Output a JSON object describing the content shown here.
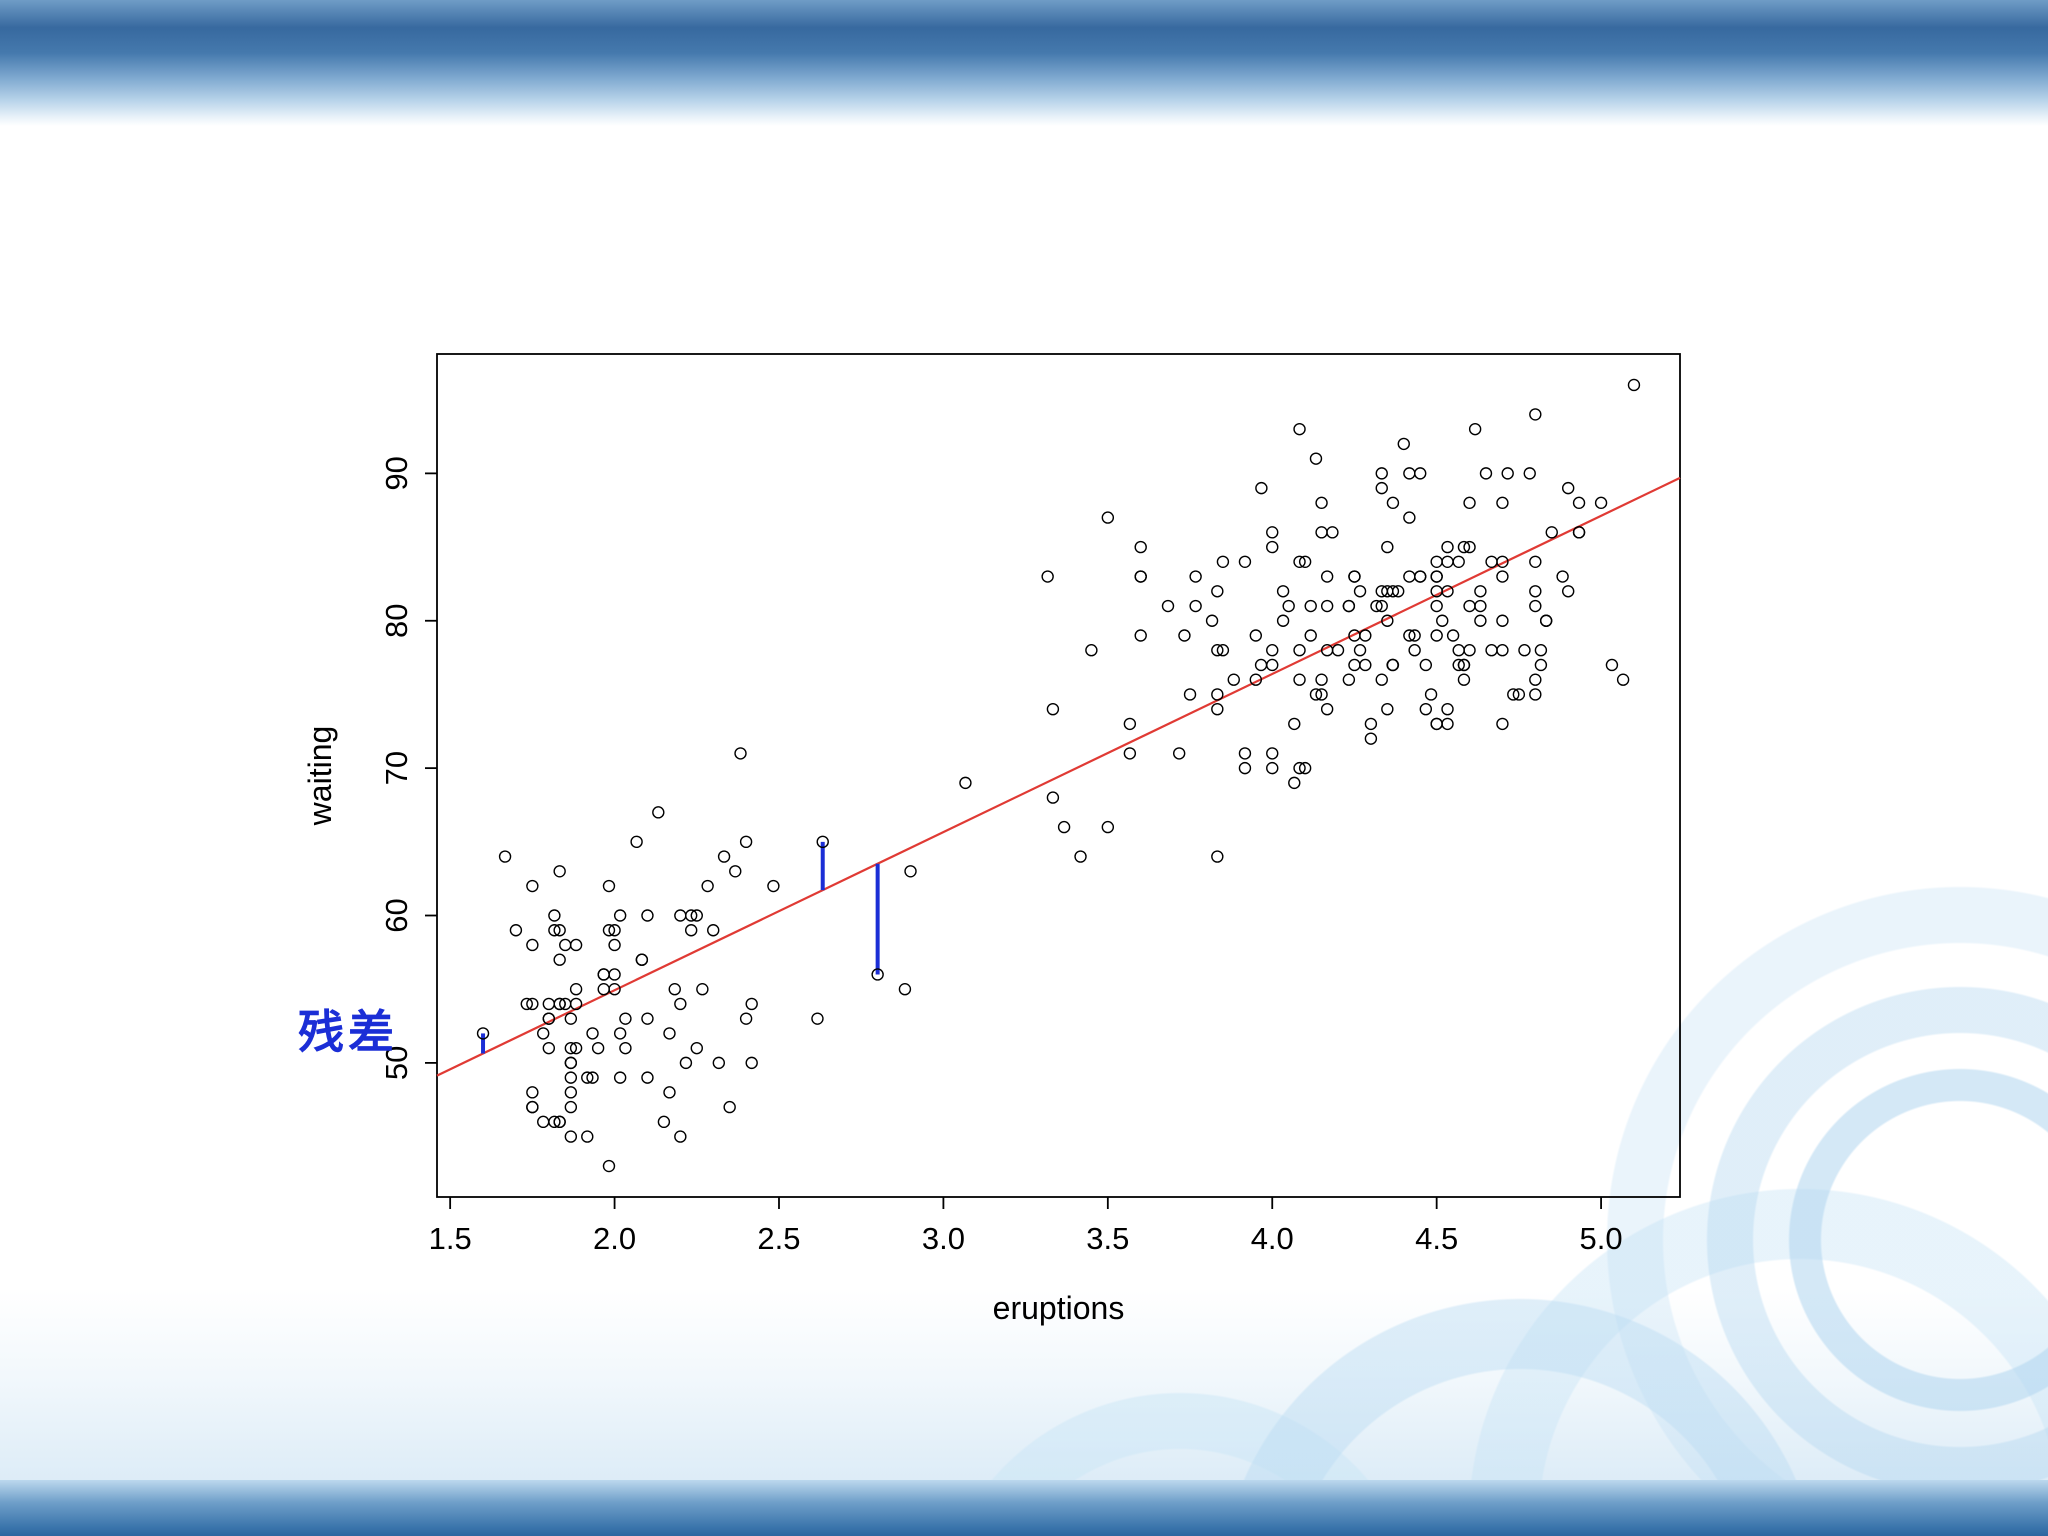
{
  "annotations": {
    "residual_label": {
      "text": "残差",
      "color": "#1b2ed6"
    }
  },
  "chart_data": {
    "type": "scatter",
    "title": "",
    "xlabel": "eruptions",
    "ylabel": "waiting",
    "xlim": [
      1.46,
      5.24
    ],
    "ylim": [
      40.9,
      98.1
    ],
    "xticks": [
      1.5,
      2.0,
      2.5,
      3.0,
      3.5,
      4.0,
      4.5,
      5.0
    ],
    "yticks": [
      50,
      60,
      70,
      80,
      90
    ],
    "grid": false,
    "legend_position": "none",
    "point_style": {
      "shape": "open-circle",
      "color": "#000000"
    },
    "regression_line": {
      "slope": 10.73,
      "intercept": 33.47,
      "color": "#e03a34"
    },
    "residuals": {
      "color": "#1b2ed6",
      "points": [
        {
          "x": 1.6,
          "y": 52
        },
        {
          "x": 2.633,
          "y": 65
        },
        {
          "x": 2.8,
          "y": 56
        }
      ]
    },
    "points": [
      [
        3.6,
        79
      ],
      [
        1.8,
        54
      ],
      [
        3.333,
        74
      ],
      [
        2.283,
        62
      ],
      [
        4.533,
        85
      ],
      [
        2.883,
        55
      ],
      [
        4.7,
        88
      ],
      [
        3.6,
        85
      ],
      [
        1.95,
        51
      ],
      [
        4.35,
        85
      ],
      [
        1.833,
        54
      ],
      [
        3.917,
        84
      ],
      [
        4.2,
        78
      ],
      [
        1.75,
        47
      ],
      [
        4.7,
        83
      ],
      [
        2.167,
        52
      ],
      [
        1.75,
        62
      ],
      [
        4.8,
        84
      ],
      [
        1.6,
        52
      ],
      [
        4.25,
        79
      ],
      [
        1.8,
        51
      ],
      [
        1.75,
        47
      ],
      [
        3.45,
        78
      ],
      [
        3.067,
        69
      ],
      [
        4.533,
        74
      ],
      [
        3.6,
        83
      ],
      [
        1.967,
        55
      ],
      [
        4.083,
        76
      ],
      [
        3.85,
        78
      ],
      [
        4.433,
        79
      ],
      [
        4.3,
        73
      ],
      [
        4.467,
        77
      ],
      [
        3.367,
        66
      ],
      [
        4.033,
        80
      ],
      [
        3.833,
        74
      ],
      [
        2.017,
        52
      ],
      [
        1.867,
        48
      ],
      [
        4.833,
        80
      ],
      [
        1.833,
        59
      ],
      [
        4.783,
        90
      ],
      [
        4.35,
        80
      ],
      [
        1.883,
        58
      ],
      [
        4.567,
        84
      ],
      [
        1.75,
        58
      ],
      [
        4.533,
        73
      ],
      [
        3.317,
        83
      ],
      [
        3.833,
        64
      ],
      [
        2.1,
        53
      ],
      [
        4.633,
        82
      ],
      [
        2.0,
        59
      ],
      [
        4.8,
        75
      ],
      [
        4.716,
        90
      ],
      [
        1.833,
        54
      ],
      [
        4.833,
        80
      ],
      [
        1.733,
        54
      ],
      [
        4.883,
        83
      ],
      [
        3.717,
        71
      ],
      [
        1.667,
        64
      ],
      [
        4.567,
        77
      ],
      [
        4.317,
        81
      ],
      [
        2.233,
        59
      ],
      [
        4.5,
        84
      ],
      [
        1.75,
        48
      ],
      [
        4.8,
        82
      ],
      [
        1.817,
        60
      ],
      [
        4.4,
        92
      ],
      [
        4.167,
        78
      ],
      [
        4.7,
        78
      ],
      [
        2.067,
        65
      ],
      [
        4.7,
        73
      ],
      [
        4.033,
        82
      ],
      [
        1.967,
        56
      ],
      [
        4.5,
        79
      ],
      [
        4.0,
        71
      ],
      [
        1.983,
        62
      ],
      [
        5.067,
        76
      ],
      [
        2.017,
        60
      ],
      [
        4.567,
        78
      ],
      [
        3.883,
        76
      ],
      [
        3.6,
        83
      ],
      [
        4.133,
        75
      ],
      [
        4.333,
        82
      ],
      [
        4.1,
        70
      ],
      [
        2.633,
        65
      ],
      [
        4.067,
        73
      ],
      [
        4.933,
        88
      ],
      [
        3.95,
        76
      ],
      [
        4.517,
        80
      ],
      [
        2.167,
        48
      ],
      [
        4.0,
        86
      ],
      [
        2.2,
        60
      ],
      [
        4.333,
        90
      ],
      [
        1.867,
        50
      ],
      [
        4.817,
        78
      ],
      [
        1.833,
        63
      ],
      [
        4.3,
        72
      ],
      [
        4.667,
        84
      ],
      [
        3.75,
        75
      ],
      [
        1.867,
        51
      ],
      [
        4.9,
        82
      ],
      [
        2.483,
        62
      ],
      [
        4.367,
        88
      ],
      [
        2.1,
        49
      ],
      [
        4.5,
        83
      ],
      [
        4.05,
        81
      ],
      [
        1.867,
        47
      ],
      [
        4.7,
        84
      ],
      [
        1.783,
        52
      ],
      [
        4.85,
        86
      ],
      [
        3.683,
        81
      ],
      [
        4.733,
        75
      ],
      [
        2.3,
        59
      ],
      [
        4.9,
        89
      ],
      [
        4.417,
        79
      ],
      [
        1.7,
        59
      ],
      [
        4.633,
        81
      ],
      [
        2.317,
        50
      ],
      [
        4.6,
        85
      ],
      [
        1.817,
        59
      ],
      [
        4.417,
        87
      ],
      [
        2.617,
        53
      ],
      [
        4.067,
        69
      ],
      [
        4.25,
        77
      ],
      [
        1.967,
        56
      ],
      [
        4.6,
        88
      ],
      [
        3.767,
        81
      ],
      [
        1.917,
        45
      ],
      [
        4.5,
        82
      ],
      [
        2.267,
        55
      ],
      [
        4.65,
        90
      ],
      [
        1.867,
        45
      ],
      [
        4.167,
        83
      ],
      [
        2.8,
        56
      ],
      [
        4.333,
        89
      ],
      [
        1.833,
        46
      ],
      [
        4.383,
        82
      ],
      [
        1.883,
        51
      ],
      [
        4.933,
        86
      ],
      [
        2.033,
        53
      ],
      [
        3.733,
        79
      ],
      [
        4.233,
        81
      ],
      [
        2.233,
        60
      ],
      [
        4.533,
        82
      ],
      [
        4.817,
        77
      ],
      [
        4.333,
        76
      ],
      [
        1.983,
        59
      ],
      [
        4.633,
        80
      ],
      [
        2.017,
        49
      ],
      [
        5.1,
        96
      ],
      [
        1.8,
        53
      ],
      [
        5.033,
        77
      ],
      [
        4.0,
        77
      ],
      [
        2.4,
        65
      ],
      [
        4.6,
        81
      ],
      [
        3.567,
        71
      ],
      [
        4.0,
        70
      ],
      [
        4.5,
        81
      ],
      [
        4.083,
        93
      ],
      [
        1.8,
        53
      ],
      [
        3.967,
        89
      ],
      [
        2.2,
        45
      ],
      [
        4.15,
        86
      ],
      [
        2.0,
        58
      ],
      [
        3.833,
        78
      ],
      [
        3.5,
        66
      ],
      [
        4.583,
        76
      ],
      [
        2.367,
        63
      ],
      [
        5.0,
        88
      ],
      [
        1.933,
        52
      ],
      [
        4.617,
        93
      ],
      [
        1.917,
        49
      ],
      [
        2.083,
        57
      ],
      [
        4.583,
        77
      ],
      [
        3.333,
        68
      ],
      [
        4.167,
        81
      ],
      [
        4.333,
        81
      ],
      [
        4.5,
        73
      ],
      [
        2.417,
        50
      ],
      [
        4.0,
        85
      ],
      [
        4.167,
        74
      ],
      [
        1.883,
        55
      ],
      [
        4.583,
        77
      ],
      [
        4.25,
        83
      ],
      [
        3.767,
        83
      ],
      [
        2.033,
        51
      ],
      [
        4.433,
        78
      ],
      [
        4.083,
        84
      ],
      [
        1.833,
        46
      ],
      [
        4.417,
        83
      ],
      [
        2.183,
        55
      ],
      [
        4.8,
        81
      ],
      [
        1.833,
        57
      ],
      [
        4.8,
        76
      ],
      [
        4.1,
        84
      ],
      [
        3.966,
        77
      ],
      [
        4.233,
        81
      ],
      [
        3.5,
        87
      ],
      [
        4.366,
        77
      ],
      [
        2.25,
        51
      ],
      [
        4.667,
        78
      ],
      [
        2.1,
        60
      ],
      [
        4.35,
        82
      ],
      [
        4.133,
        91
      ],
      [
        1.867,
        53
      ],
      [
        4.6,
        78
      ],
      [
        1.783,
        46
      ],
      [
        4.367,
        77
      ],
      [
        3.85,
        84
      ],
      [
        1.933,
        49
      ],
      [
        4.5,
        83
      ],
      [
        2.383,
        71
      ],
      [
        4.7,
        80
      ],
      [
        1.867,
        49
      ],
      [
        3.833,
        75
      ],
      [
        3.417,
        64
      ],
      [
        4.233,
        76
      ],
      [
        2.4,
        53
      ],
      [
        4.8,
        94
      ],
      [
        2.0,
        55
      ],
      [
        4.15,
        76
      ],
      [
        1.867,
        50
      ],
      [
        4.267,
        82
      ],
      [
        1.75,
        54
      ],
      [
        4.483,
        75
      ],
      [
        4.0,
        78
      ],
      [
        4.117,
        79
      ],
      [
        4.083,
        78
      ],
      [
        4.267,
        78
      ],
      [
        3.917,
        70
      ],
      [
        4.55,
        79
      ],
      [
        4.083,
        70
      ],
      [
        2.417,
        54
      ],
      [
        4.183,
        86
      ],
      [
        2.217,
        50
      ],
      [
        4.45,
        90
      ],
      [
        1.883,
        54
      ],
      [
        1.85,
        54
      ],
      [
        4.283,
        77
      ],
      [
        3.95,
        79
      ],
      [
        2.333,
        64
      ],
      [
        4.15,
        75
      ],
      [
        2.35,
        47
      ],
      [
        4.933,
        86
      ],
      [
        2.9,
        63
      ],
      [
        4.583,
        85
      ],
      [
        3.833,
        82
      ],
      [
        2.083,
        57
      ],
      [
        4.367,
        82
      ],
      [
        2.133,
        67
      ],
      [
        4.35,
        74
      ],
      [
        2.2,
        54
      ],
      [
        4.45,
        83
      ],
      [
        3.567,
        73
      ],
      [
        4.5,
        73
      ],
      [
        4.15,
        88
      ],
      [
        3.817,
        80
      ],
      [
        3.917,
        71
      ],
      [
        4.45,
        83
      ],
      [
        2.0,
        56
      ],
      [
        4.283,
        79
      ],
      [
        4.767,
        78
      ],
      [
        4.533,
        84
      ],
      [
        1.85,
        58
      ],
      [
        4.25,
        83
      ],
      [
        1.983,
        43
      ],
      [
        2.25,
        60
      ],
      [
        4.75,
        75
      ],
      [
        4.117,
        81
      ],
      [
        2.15,
        46
      ],
      [
        4.417,
        90
      ],
      [
        1.817,
        46
      ],
      [
        4.467,
        74
      ]
    ]
  }
}
